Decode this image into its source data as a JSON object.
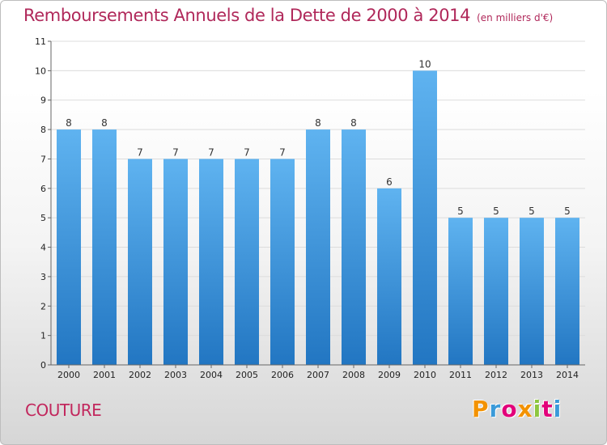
{
  "title": "Remboursements Annuels de la Dette de 2000 à 2014",
  "unit": "(en milliers d'€)",
  "place": "COUTURE",
  "logo": "Proxiti",
  "logo_colors": [
    "#f39200",
    "#3a9ad9",
    "#e2007a",
    "#f39200",
    "#8dc63f",
    "#e2007a",
    "#3a9ad9"
  ],
  "colors": {
    "bar_light": "#5fb3f0",
    "bar_dark": "#2276c2",
    "title": "#b0285a",
    "place": "#c2275d"
  },
  "chart_data": {
    "type": "bar",
    "title": "Remboursements Annuels de la Dette de 2000 à 2014",
    "ylabel": "",
    "xlabel": "",
    "categories": [
      "2000",
      "2001",
      "2002",
      "2003",
      "2004",
      "2005",
      "2006",
      "2007",
      "2008",
      "2009",
      "2010",
      "2011",
      "2012",
      "2013",
      "2014"
    ],
    "values": [
      8,
      8,
      7,
      7,
      7,
      7,
      7,
      8,
      8,
      6,
      10,
      5,
      5,
      5,
      5
    ],
    "ylim": [
      0,
      11
    ],
    "yticks": [
      0,
      1,
      2,
      3,
      4,
      5,
      6,
      7,
      8,
      9,
      10,
      11
    ],
    "grid": true
  }
}
